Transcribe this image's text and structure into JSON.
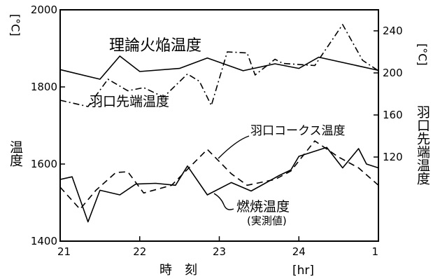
{
  "chart_data": {
    "type": "line",
    "x": [
      "21:00",
      "21:15",
      "21:30",
      "21:45",
      "22:00",
      "22:15",
      "22:30",
      "22:45",
      "23:00",
      "23:15",
      "23:30",
      "23:45",
      "24:00",
      "24:15",
      "24:30",
      "24:45",
      "1:00"
    ],
    "x_ticks": [
      "21",
      "22",
      "23",
      "24",
      "1"
    ],
    "xlabel": "時　刻",
    "xlabel_unit": "[hr]",
    "left_axis": {
      "label": "温度",
      "unit": "[°C]",
      "ylim": [
        1400,
        2000
      ],
      "ticks": [
        "1400",
        "1600",
        "1800",
        "2000"
      ]
    },
    "right_axis": {
      "label": "羽口先端温度",
      "unit": "[°C]",
      "ylim": [
        40,
        260
      ],
      "ticks": [
        "120",
        "160",
        "200",
        "240"
      ]
    },
    "series": [
      {
        "name": "理論火焔温度",
        "axis": "left",
        "line_style": "solid",
        "points": [
          [
            0,
            1845
          ],
          [
            0.5,
            1820
          ],
          [
            0.75,
            1880
          ],
          [
            1,
            1840
          ],
          [
            1.5,
            1848
          ],
          [
            1.85,
            1875
          ],
          [
            2.3,
            1842
          ],
          [
            2.7,
            1860
          ],
          [
            3,
            1848
          ],
          [
            3.25,
            1877
          ],
          [
            4,
            1843
          ]
        ]
      },
      {
        "name": "羽口先端温度",
        "axis": "right",
        "line_style": "dash-dot",
        "points": [
          [
            0,
            174
          ],
          [
            0.35,
            168
          ],
          [
            0.6,
            194
          ],
          [
            0.85,
            183
          ],
          [
            1.05,
            186
          ],
          [
            1.3,
            177
          ],
          [
            1.6,
            199
          ],
          [
            1.75,
            192
          ],
          [
            1.9,
            169
          ],
          [
            2.1,
            220
          ],
          [
            2.35,
            219
          ],
          [
            2.45,
            198
          ],
          [
            2.7,
            213
          ],
          [
            2.8,
            209
          ],
          [
            3.2,
            207
          ],
          [
            3.55,
            246
          ],
          [
            3.8,
            212
          ],
          [
            4,
            202
          ]
        ]
      },
      {
        "name": "羽口コークス温度",
        "axis": "left",
        "line_style": "dashed",
        "points": [
          [
            0,
            1540
          ],
          [
            0.25,
            1483
          ],
          [
            0.45,
            1532
          ],
          [
            0.7,
            1578
          ],
          [
            0.85,
            1580
          ],
          [
            1.05,
            1525
          ],
          [
            1.4,
            1545
          ],
          [
            1.85,
            1638
          ],
          [
            2.15,
            1575
          ],
          [
            2.35,
            1545
          ],
          [
            2.7,
            1560
          ],
          [
            2.9,
            1582
          ],
          [
            3.2,
            1660
          ],
          [
            3.5,
            1618
          ],
          [
            3.75,
            1590
          ],
          [
            4,
            1545
          ]
        ]
      },
      {
        "name": "燃焼温度",
        "name_note": "(実測値)",
        "axis": "left",
        "line_style": "solid",
        "points": [
          [
            0,
            1560
          ],
          [
            0.15,
            1567
          ],
          [
            0.35,
            1450
          ],
          [
            0.5,
            1532
          ],
          [
            0.75,
            1520
          ],
          [
            0.95,
            1548
          ],
          [
            1.2,
            1550
          ],
          [
            1.45,
            1545
          ],
          [
            1.6,
            1595
          ],
          [
            1.85,
            1520
          ],
          [
            2.15,
            1552
          ],
          [
            2.4,
            1530
          ],
          [
            2.75,
            1570
          ],
          [
            2.9,
            1585
          ],
          [
            3,
            1620
          ],
          [
            3.35,
            1643
          ],
          [
            3.55,
            1590
          ],
          [
            3.75,
            1640
          ],
          [
            3.85,
            1600
          ],
          [
            4,
            1590
          ]
        ]
      }
    ]
  }
}
